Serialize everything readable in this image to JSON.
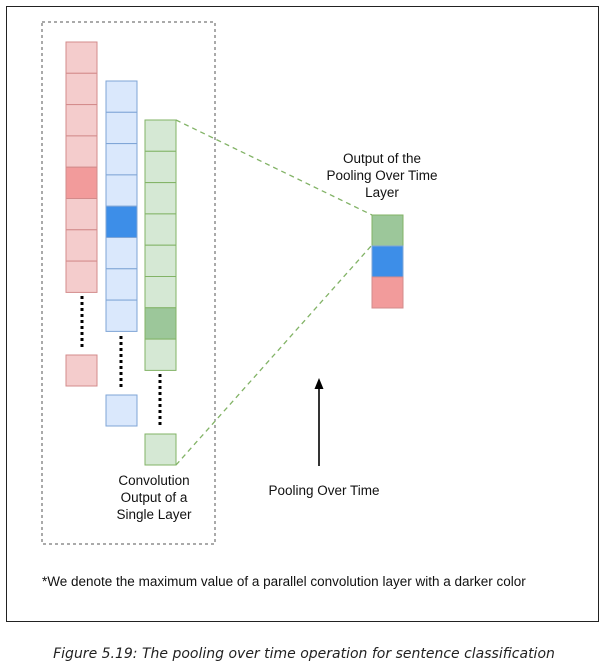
{
  "labels": {
    "conv_output": [
      "Convolution",
      "Output of a",
      "Single Layer"
    ],
    "pool_output": [
      "Output of the",
      "Pooling Over Time",
      "Layer"
    ],
    "arrow": "Pooling Over Time"
  },
  "footnote": "*We denote the maximum value of a parallel convolution layer with a darker color",
  "caption": "Figure 5.19: The pooling over time operation for sentence classification",
  "colors": {
    "red_light": "#f4cccc",
    "red_dark": "#f29b9b",
    "red_stroke": "#d38b8b",
    "blue_light": "#dae8fc",
    "blue_dark": "#3d8ee8",
    "blue_stroke": "#7fa5d6",
    "green_light": "#d5e8d4",
    "green_dark": "#9cc79a",
    "green_stroke": "#82b366",
    "pool_green": "#9cc79a",
    "pool_blue": "#3d8ee8",
    "pool_red": "#f29b9b"
  }
}
